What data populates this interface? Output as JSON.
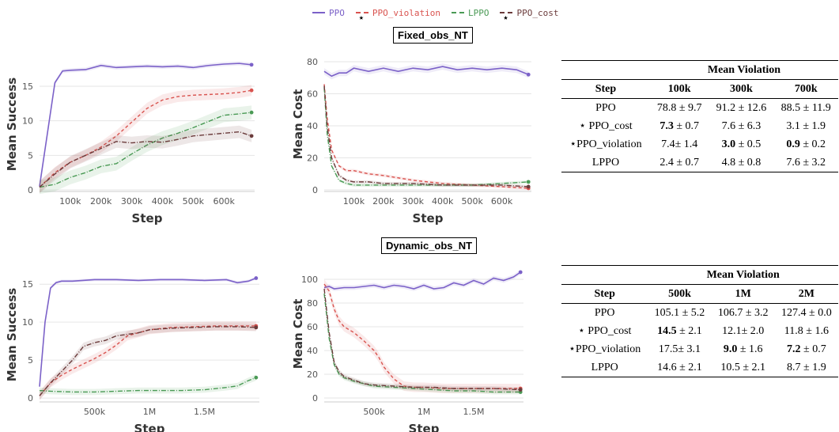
{
  "legend": [
    {
      "name": "PPO",
      "color": "#7b61c8",
      "style": "solid",
      "star": false
    },
    {
      "name": "PPO_violation",
      "color": "#d9534f",
      "style": "dashed",
      "star": true
    },
    {
      "name": "LPPO",
      "color": "#4a9a55",
      "style": "dashdot",
      "star": false
    },
    {
      "name": "PPO_cost",
      "color": "#6b3b3b",
      "style": "dashdot",
      "star": true
    }
  ],
  "scenarios": [
    {
      "title": "Fixed_obs_NT"
    },
    {
      "title": "Dynamic_obs_NT"
    }
  ],
  "chart_data": [
    {
      "type": "line",
      "xlabel": "Step",
      "ylabel": "Mean Success",
      "xlim": [
        0,
        700000
      ],
      "ylim": [
        0,
        19
      ],
      "xticks": [
        100000,
        200000,
        300000,
        400000,
        500000,
        600000
      ],
      "xticklabels": [
        "100k",
        "200k",
        "300k",
        "400k",
        "500k",
        "600k"
      ],
      "yticks": [
        0,
        5,
        10,
        15
      ],
      "yticklabels": [
        "0",
        "5",
        "10",
        "15"
      ],
      "grid": "horizontal",
      "series": [
        {
          "name": "PPO",
          "color": "#7b61c8",
          "dash": "",
          "band": 0.3,
          "x": [
            0,
            25000,
            50000,
            75000,
            100000,
            150000,
            200000,
            250000,
            300000,
            350000,
            400000,
            450000,
            500000,
            550000,
            600000,
            650000,
            690000
          ],
          "y": [
            0.5,
            8,
            15.5,
            17.2,
            17.3,
            17.4,
            18.0,
            17.7,
            17.8,
            17.9,
            17.8,
            17.9,
            17.7,
            18.0,
            18.2,
            18.3,
            18.1
          ]
        },
        {
          "name": "PPO_violation",
          "color": "#d9534f",
          "dash": "4,3",
          "band": 0.8,
          "x": [
            0,
            50000,
            100000,
            150000,
            200000,
            250000,
            300000,
            350000,
            400000,
            450000,
            500000,
            550000,
            600000,
            650000,
            690000
          ],
          "y": [
            0.4,
            2.5,
            4.0,
            5.0,
            6.2,
            7.8,
            9.8,
            11.8,
            13.0,
            13.5,
            13.7,
            13.8,
            13.9,
            14.1,
            14.4
          ]
        },
        {
          "name": "LPPO",
          "color": "#4a9a55",
          "dash": "6,2,1,2",
          "band": 1.0,
          "x": [
            0,
            50000,
            100000,
            150000,
            200000,
            250000,
            300000,
            350000,
            400000,
            450000,
            500000,
            550000,
            600000,
            650000,
            690000
          ],
          "y": [
            0.4,
            0.8,
            1.8,
            2.5,
            3.4,
            3.8,
            5.2,
            6.5,
            7.5,
            8.2,
            9.0,
            9.9,
            10.8,
            11.0,
            11.2
          ]
        },
        {
          "name": "PPO_cost",
          "color": "#6b3b3b",
          "dash": "6,2,1,2",
          "band": 0.9,
          "x": [
            0,
            50000,
            100000,
            150000,
            200000,
            250000,
            300000,
            350000,
            400000,
            450000,
            500000,
            550000,
            600000,
            650000,
            690000
          ],
          "y": [
            0.4,
            2.3,
            4.0,
            5.0,
            6.0,
            7.0,
            6.8,
            7.0,
            6.9,
            7.3,
            7.8,
            8.0,
            8.2,
            8.4,
            7.8
          ]
        }
      ]
    },
    {
      "type": "line",
      "xlabel": "Step",
      "ylabel": "Mean Cost",
      "xlim": [
        0,
        700000
      ],
      "ylim": [
        0,
        82
      ],
      "xticks": [
        100000,
        200000,
        300000,
        400000,
        500000,
        600000
      ],
      "xticklabels": [
        "100k",
        "200k",
        "300k",
        "400k",
        "500k",
        "600k"
      ],
      "yticks": [
        0,
        20,
        40,
        60,
        80
      ],
      "yticklabels": [
        "0",
        "20",
        "40",
        "60",
        "80"
      ],
      "grid": "horizontal",
      "series": [
        {
          "name": "PPO",
          "color": "#7b61c8",
          "dash": "",
          "band": 2.0,
          "x": [
            0,
            25000,
            50000,
            75000,
            100000,
            150000,
            200000,
            250000,
            300000,
            350000,
            400000,
            450000,
            500000,
            550000,
            600000,
            650000,
            690000
          ],
          "y": [
            74,
            71,
            73,
            73,
            76,
            74,
            76,
            74,
            76,
            75,
            77,
            75,
            76,
            75,
            76,
            75,
            72
          ]
        },
        {
          "name": "PPO_violation",
          "color": "#d9534f",
          "dash": "4,3",
          "band": 1.0,
          "x": [
            0,
            10000,
            25000,
            50000,
            75000,
            100000,
            150000,
            200000,
            300000,
            400000,
            500000,
            600000,
            690000
          ],
          "y": [
            66,
            45,
            25,
            15,
            12,
            12,
            10,
            9,
            6,
            4,
            3,
            2,
            1
          ]
        },
        {
          "name": "LPPO",
          "color": "#4a9a55",
          "dash": "6,2,1,2",
          "band": 1.0,
          "x": [
            0,
            10000,
            25000,
            50000,
            75000,
            100000,
            150000,
            200000,
            300000,
            400000,
            500000,
            600000,
            690000
          ],
          "y": [
            64,
            35,
            15,
            6,
            4,
            3,
            3,
            3,
            3,
            3,
            3,
            4,
            5
          ]
        },
        {
          "name": "PPO_cost",
          "color": "#6b3b3b",
          "dash": "6,2,1,2",
          "band": 1.0,
          "x": [
            0,
            10000,
            25000,
            50000,
            75000,
            100000,
            150000,
            200000,
            300000,
            400000,
            500000,
            600000,
            690000
          ],
          "y": [
            65,
            40,
            20,
            9,
            6,
            5,
            5,
            4,
            4,
            3,
            3,
            3,
            2
          ]
        }
      ]
    },
    {
      "type": "line",
      "xlabel": "Step",
      "ylabel": "Mean Success",
      "xlim": [
        0,
        2000000
      ],
      "ylim": [
        -0.3,
        17
      ],
      "xticks": [
        500000,
        1000000,
        1500000
      ],
      "xticklabels": [
        "500k",
        "1M",
        "1.5M"
      ],
      "yticks": [
        0,
        5,
        10,
        15
      ],
      "yticklabels": [
        "0",
        "5",
        "10",
        "15"
      ],
      "grid": "horizontal",
      "series": [
        {
          "name": "PPO",
          "color": "#7b61c8",
          "dash": "",
          "band": 0.2,
          "x": [
            0,
            50000,
            100000,
            150000,
            200000,
            300000,
            500000,
            700000,
            900000,
            1100000,
            1300000,
            1500000,
            1700000,
            1800000,
            1900000,
            1970000
          ],
          "y": [
            1.5,
            10,
            14.5,
            15.2,
            15.4,
            15.4,
            15.6,
            15.6,
            15.5,
            15.6,
            15.6,
            15.5,
            15.6,
            15.2,
            15.4,
            15.8
          ]
        },
        {
          "name": "PPO_violation",
          "color": "#d9534f",
          "dash": "4,3",
          "band": 0.6,
          "x": [
            0,
            100000,
            200000,
            300000,
            400000,
            500000,
            600000,
            700000,
            800000,
            900000,
            1000000,
            1200000,
            1400000,
            1600000,
            1800000,
            1970000
          ],
          "y": [
            0.3,
            2,
            3,
            3.8,
            4.5,
            5.2,
            6.0,
            7.0,
            8.2,
            8.6,
            9.0,
            9.3,
            9.4,
            9.5,
            9.5,
            9.5
          ]
        },
        {
          "name": "LPPO",
          "color": "#4a9a55",
          "dash": "6,2,1,2",
          "band": 0.4,
          "x": [
            0,
            100000,
            300000,
            500000,
            700000,
            900000,
            1100000,
            1300000,
            1500000,
            1700000,
            1800000,
            1900000,
            1970000
          ],
          "y": [
            1.0,
            0.9,
            0.8,
            0.8,
            0.9,
            1.0,
            1.0,
            1.0,
            1.1,
            1.4,
            1.6,
            2.3,
            2.7
          ]
        },
        {
          "name": "PPO_cost",
          "color": "#6b3b3b",
          "dash": "6,2,1,2",
          "band": 0.5,
          "x": [
            0,
            100000,
            200000,
            300000,
            400000,
            500000,
            600000,
            700000,
            800000,
            900000,
            1000000,
            1200000,
            1400000,
            1600000,
            1800000,
            1970000
          ],
          "y": [
            0.3,
            2,
            3.5,
            5.0,
            6.8,
            7.3,
            7.6,
            8.2,
            8.4,
            8.6,
            9.0,
            9.2,
            9.3,
            9.4,
            9.4,
            9.3
          ]
        }
      ]
    },
    {
      "type": "line",
      "xlabel": "Step",
      "ylabel": "Mean Cost",
      "xlim": [
        0,
        2000000
      ],
      "ylim": [
        -2,
        110
      ],
      "xticks": [
        500000,
        1000000,
        1500000
      ],
      "xticklabels": [
        "500k",
        "1M",
        "1.5M"
      ],
      "yticks": [
        0,
        20,
        40,
        60,
        80,
        100
      ],
      "yticklabels": [
        "0",
        "20",
        "40",
        "60",
        "80",
        "100"
      ],
      "grid": "horizontal",
      "series": [
        {
          "name": "PPO",
          "color": "#7b61c8",
          "dash": "",
          "band": 2.0,
          "x": [
            0,
            50000,
            100000,
            200000,
            300000,
            400000,
            500000,
            600000,
            700000,
            800000,
            900000,
            1000000,
            1100000,
            1200000,
            1300000,
            1400000,
            1500000,
            1600000,
            1700000,
            1800000,
            1900000,
            1970000
          ],
          "y": [
            93,
            94,
            92,
            93,
            93,
            94,
            95,
            93,
            95,
            94,
            92,
            95,
            92,
            93,
            97,
            95,
            99,
            96,
            101,
            99,
            102,
            106
          ]
        },
        {
          "name": "PPO_violation",
          "color": "#d9534f",
          "dash": "4,3",
          "band": 4.0,
          "x": [
            0,
            50000,
            100000,
            150000,
            200000,
            300000,
            400000,
            500000,
            550000,
            600000,
            700000,
            800000,
            900000,
            1000000,
            1200000,
            1400000,
            1600000,
            1800000,
            1970000
          ],
          "y": [
            96,
            90,
            75,
            65,
            60,
            55,
            48,
            40,
            34,
            26,
            16,
            10,
            9,
            9,
            8,
            8,
            8,
            8,
            8
          ]
        },
        {
          "name": "LPPO",
          "color": "#4a9a55",
          "dash": "6,2,1,2",
          "band": 2.0,
          "x": [
            0,
            50000,
            100000,
            150000,
            200000,
            300000,
            400000,
            500000,
            700000,
            900000,
            1100000,
            1300000,
            1500000,
            1700000,
            1970000
          ],
          "y": [
            88,
            50,
            28,
            20,
            17,
            14,
            12,
            10,
            9,
            8,
            7,
            6,
            6,
            5,
            5
          ]
        },
        {
          "name": "PPO_cost",
          "color": "#6b3b3b",
          "dash": "6,2,1,2",
          "band": 2.0,
          "x": [
            0,
            50000,
            100000,
            150000,
            200000,
            300000,
            400000,
            500000,
            700000,
            900000,
            1100000,
            1300000,
            1500000,
            1700000,
            1970000
          ],
          "y": [
            92,
            55,
            30,
            22,
            18,
            15,
            12,
            11,
            10,
            9,
            9,
            8,
            8,
            8,
            7
          ]
        }
      ]
    }
  ],
  "tables": [
    {
      "super_header": "Mean Violation",
      "columns": [
        "Step",
        "100k",
        "300k",
        "700k"
      ],
      "rows": [
        [
          {
            "t": "PPO"
          },
          {
            "t": "78.8 ± 9.7"
          },
          {
            "t": "91.2 ± 12.6"
          },
          {
            "t": "88.5 ± 11.9"
          }
        ],
        [
          {
            "t": "⋆ PPO_cost"
          },
          {
            "b": "7.3",
            "t": " ± 0.7"
          },
          {
            "t": "7.6 ± 6.3"
          },
          {
            "t": "3.1 ± 1.9"
          }
        ],
        [
          {
            "t": "⋆PPO_violation"
          },
          {
            "t": "7.4± 1.4"
          },
          {
            "b": "3.0",
            "t": " ± 0.5"
          },
          {
            "b": "0.9",
            "t": " ± 0.2"
          }
        ],
        [
          {
            "t": "LPPO"
          },
          {
            "t": "2.4 ± 0.7"
          },
          {
            "t": "4.8 ± 0.8"
          },
          {
            "t": "7.6 ± 3.2"
          }
        ]
      ]
    },
    {
      "super_header": "Mean Violation",
      "columns": [
        "Step",
        "500k",
        "1M",
        "2M"
      ],
      "rows": [
        [
          {
            "t": "PPO"
          },
          {
            "t": "105.1 ± 5.2"
          },
          {
            "t": "106.7 ± 3.2"
          },
          {
            "t": "127.4 ± 0.0"
          }
        ],
        [
          {
            "t": "⋆ PPO_cost"
          },
          {
            "b": "14.5",
            "t": " ± 2.1"
          },
          {
            "t": "12.1± 2.0"
          },
          {
            "t": "11.8 ± 1.6"
          }
        ],
        [
          {
            "t": "⋆PPO_violation"
          },
          {
            "t": "17.5± 3.1"
          },
          {
            "b": "9.0",
            "t": " ± 1.6"
          },
          {
            "b": "7.2",
            "t": " ± 0.7"
          }
        ],
        [
          {
            "t": "LPPO"
          },
          {
            "t": "14.6 ± 2.1"
          },
          {
            "t": "10.5 ± 2.1"
          },
          {
            "t": "8.7 ± 1.9"
          }
        ]
      ]
    }
  ]
}
